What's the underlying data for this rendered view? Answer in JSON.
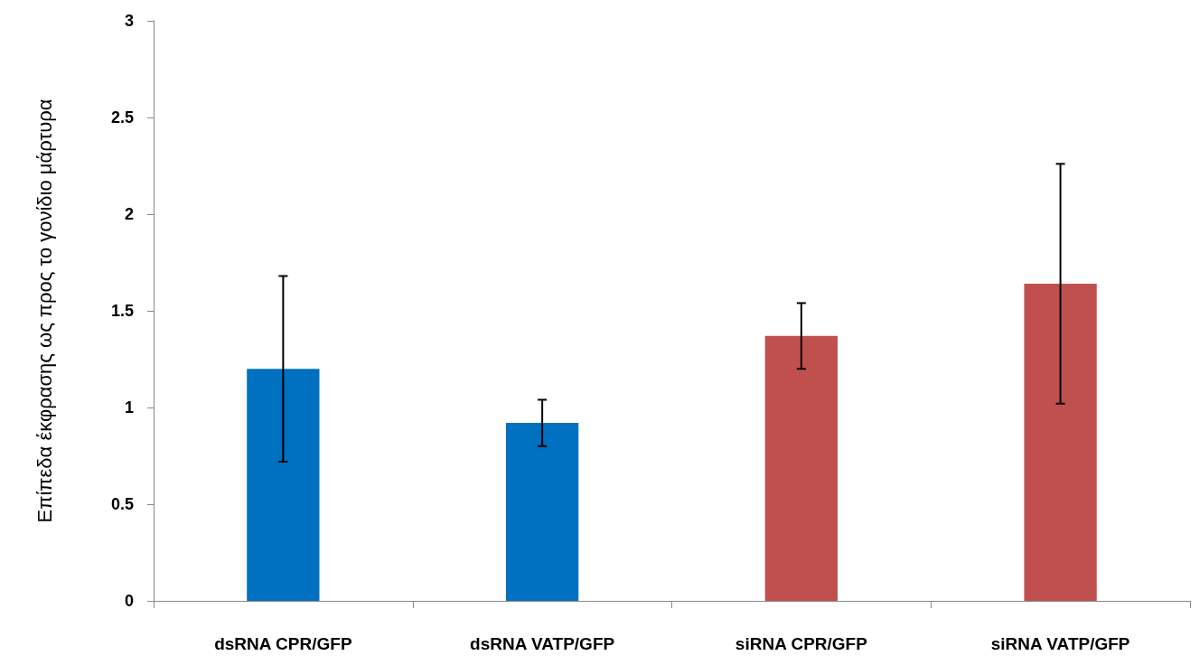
{
  "chart_data": {
    "type": "bar",
    "ylabel": "Επίπεδα έκφρασης ως προς το γονίδιο μάρτυρα",
    "categories": [
      "dsRNA CPR/GFP",
      "dsRNA VATP/GFP",
      "siRNA CPR/GFP",
      "siRNA VATP/GFP"
    ],
    "values": [
      1.2,
      0.92,
      1.37,
      1.64
    ],
    "errors": [
      0.48,
      0.12,
      0.17,
      0.62
    ],
    "colors": [
      "#0070c0",
      "#0070c0",
      "#c0504d",
      "#c0504d"
    ],
    "ylim": [
      0,
      3
    ],
    "yticks": [
      0,
      0.5,
      1,
      1.5,
      2,
      2.5,
      3
    ],
    "grid": false
  }
}
